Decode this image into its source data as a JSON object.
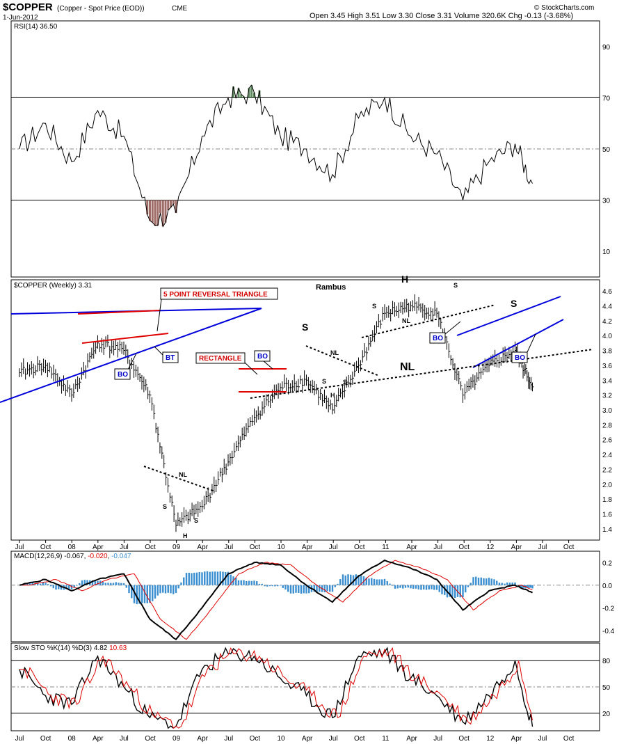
{
  "header": {
    "symbol": "$COPPER",
    "description": "(Copper - Spot Price (EOD))",
    "exchange": "CME",
    "date": "1-Jun-2012",
    "quote": "Open 3.45  High 3.51  Low 3.30  Close 3.31  Volume 320.6K  Chg -0.13 (-3.68%)",
    "watermark": "© StockCharts.com"
  },
  "colors": {
    "price": "#000000",
    "trendline_blue": "#0000dd",
    "box_red": "#e00000",
    "rsi_oversold_fill": "#9e6b66",
    "rsi_overbought_fill": "#5e8a5e",
    "macd_signal": "#e00000",
    "macd_hist": "#3a8fd0",
    "sto_d": "#e00000",
    "grid": "#888888"
  },
  "x_axis": {
    "labels": [
      "Jul",
      "Oct",
      "08",
      "Apr",
      "Jul",
      "Oct",
      "09",
      "Apr",
      "Jul",
      "Oct",
      "10",
      "Apr",
      "Jul",
      "Oct",
      "11",
      "Apr",
      "Jul",
      "Oct",
      "12",
      "Apr",
      "Jul",
      "Oct"
    ]
  },
  "panels": {
    "rsi": {
      "label": "RSI(14) 36.50",
      "ticks": [
        90,
        70,
        50,
        30,
        10
      ]
    },
    "price": {
      "label": "$COPPER (Weekly) 3.31",
      "ticks": [
        "4.6",
        "4.4",
        "4.2",
        "4.0",
        "3.8",
        "3.6",
        "3.4",
        "3.2",
        "3.0",
        "2.8",
        "2.6",
        "2.4",
        "2.2",
        "2.0",
        "1.8",
        "1.6",
        "1.4"
      ]
    },
    "macd": {
      "label_prefix": "MACD(12,26,9)",
      "macd": "-0.067",
      "signal": "-0.020",
      "hist": "-0.047",
      "ticks": [
        "0.2",
        "0.0",
        "-0.2",
        "-0.4"
      ]
    },
    "sto": {
      "label_prefix": "Slow STO %K(14) %D(3)",
      "k": "4.82",
      "d": "10.63",
      "ticks": [
        80,
        50,
        20
      ]
    }
  },
  "annotations": {
    "rambus": "Rambus",
    "triangle": "5 POINT REVERSAL TRIANGLE",
    "rectangle": "RECTANGLE",
    "bo": "BO",
    "bt": "BT",
    "nl": "NL",
    "s": "S",
    "h": "H"
  },
  "chart_data": {
    "type": "line",
    "title": "$COPPER (Copper - Spot Price (EOD)) CME",
    "xlabel": "",
    "ylabel": "",
    "x": [
      "2007-07",
      "2007-10",
      "2008-01",
      "2008-04",
      "2008-07",
      "2008-10",
      "2009-01",
      "2009-04",
      "2009-07",
      "2009-10",
      "2010-01",
      "2010-04",
      "2010-07",
      "2010-10",
      "2011-01",
      "2011-04",
      "2011-07",
      "2011-10",
      "2012-01",
      "2012-04",
      "2012-06"
    ],
    "ylim": [
      1.3,
      4.7
    ],
    "series": [
      {
        "name": "$COPPER (Weekly)",
        "values": [
          3.5,
          3.6,
          3.2,
          3.9,
          3.8,
          3.2,
          1.45,
          1.7,
          2.3,
          2.9,
          3.3,
          3.4,
          3.0,
          3.6,
          4.3,
          4.4,
          4.3,
          3.2,
          3.6,
          3.8,
          3.31
        ]
      },
      {
        "name": "RSI(14)",
        "values": [
          50,
          60,
          45,
          65,
          55,
          22,
          25,
          55,
          70,
          72,
          55,
          50,
          40,
          62,
          70,
          55,
          48,
          30,
          45,
          52,
          36.5
        ]
      }
    ],
    "macd": {
      "macd": [
        0.0,
        0.05,
        -0.05,
        0.05,
        0.1,
        -0.3,
        -0.48,
        -0.2,
        0.1,
        0.2,
        0.18,
        0.0,
        -0.15,
        0.08,
        0.22,
        0.15,
        0.05,
        -0.22,
        -0.05,
        0.0,
        -0.067
      ],
      "signal": -0.02,
      "histogram": -0.047
    },
    "slow_sto": {
      "k": [
        70,
        40,
        30,
        85,
        50,
        15,
        5,
        70,
        88,
        85,
        60,
        40,
        15,
        85,
        90,
        60,
        40,
        10,
        40,
        80,
        4.82
      ],
      "d": 10.63
    },
    "grid": true,
    "legend": "top-left"
  }
}
